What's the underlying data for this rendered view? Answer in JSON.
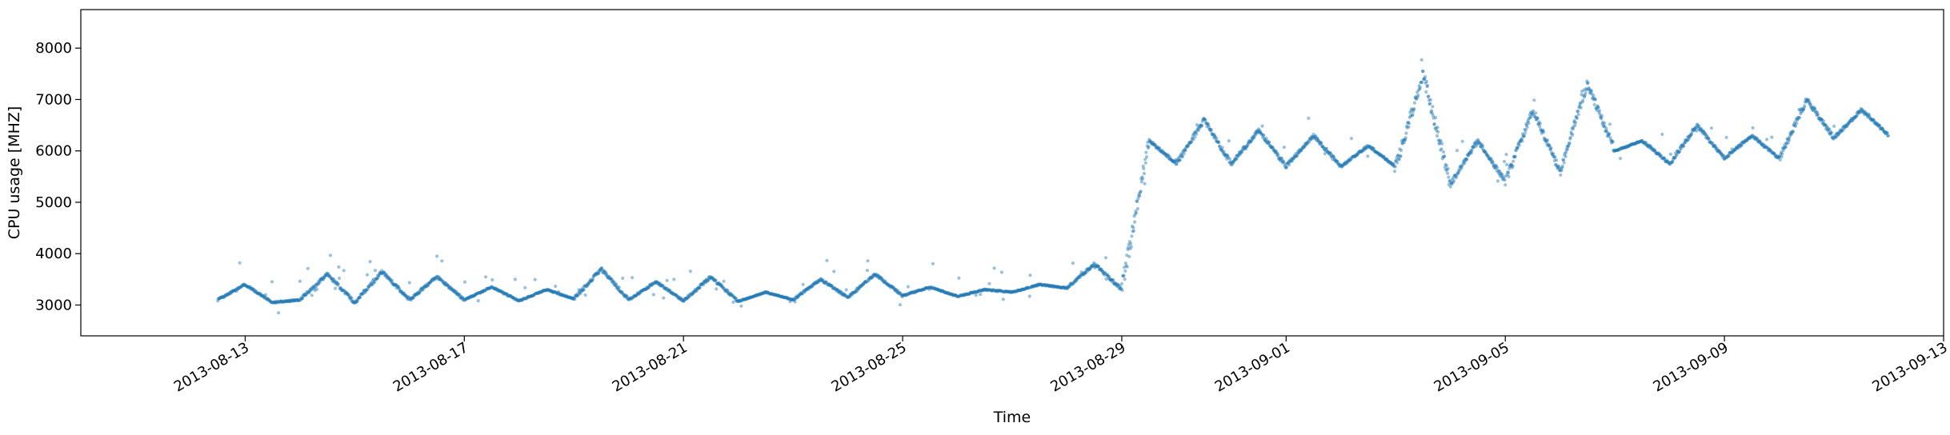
{
  "chart_data": {
    "type": "scatter",
    "title": "",
    "xlabel": "Time",
    "ylabel": "CPU usage [MHZ]",
    "color": "#1f77b4",
    "point_alpha": 0.45,
    "x_axis_type": "date",
    "xlim": [
      "2013-08-10",
      "2013-09-13"
    ],
    "ylim": [
      2400,
      8750
    ],
    "grid": false,
    "legend": "none",
    "y_ticks": [
      {
        "value": 3000,
        "label": "3000"
      },
      {
        "value": 4000,
        "label": "4000"
      },
      {
        "value": 5000,
        "label": "5000"
      },
      {
        "value": 6000,
        "label": "6000"
      },
      {
        "value": 7000,
        "label": "7000"
      },
      {
        "value": 8000,
        "label": "8000"
      }
    ],
    "x_ticks": [
      {
        "value": "2013-08-13",
        "label": "2013-08-13"
      },
      {
        "value": "2013-08-17",
        "label": "2013-08-17"
      },
      {
        "value": "2013-08-21",
        "label": "2013-08-21"
      },
      {
        "value": "2013-08-25",
        "label": "2013-08-25"
      },
      {
        "value": "2013-08-29",
        "label": "2013-08-29"
      },
      {
        "value": "2013-09-01",
        "label": "2013-09-01"
      },
      {
        "value": "2013-09-05",
        "label": "2013-09-05"
      },
      {
        "value": "2013-09-09",
        "label": "2013-09-09"
      },
      {
        "value": "2013-09-13",
        "label": "2013-09-13"
      }
    ],
    "series": [
      {
        "x": [
          "2013-08-12 12:00",
          "2013-08-13 00:00",
          "2013-08-13 12:00",
          "2013-08-14 00:00",
          "2013-08-14 12:00",
          "2013-08-15 00:00",
          "2013-08-15 12:00",
          "2013-08-16 00:00",
          "2013-08-16 12:00",
          "2013-08-17 00:00",
          "2013-08-17 12:00",
          "2013-08-18 00:00",
          "2013-08-18 12:00",
          "2013-08-19 00:00",
          "2013-08-19 12:00",
          "2013-08-20 00:00",
          "2013-08-20 12:00",
          "2013-08-21 00:00",
          "2013-08-21 12:00",
          "2013-08-22 00:00",
          "2013-08-22 12:00",
          "2013-08-23 00:00",
          "2013-08-23 12:00",
          "2013-08-24 00:00",
          "2013-08-24 12:00",
          "2013-08-25 00:00",
          "2013-08-25 12:00",
          "2013-08-26 00:00",
          "2013-08-26 12:00",
          "2013-08-27 00:00",
          "2013-08-27 12:00",
          "2013-08-28 00:00",
          "2013-08-28 12:00",
          "2013-08-29 00:00",
          "2013-08-29 12:00",
          "2013-08-30 00:00",
          "2013-08-30 12:00",
          "2013-08-31 00:00",
          "2013-08-31 12:00",
          "2013-09-01 00:00",
          "2013-09-01 12:00",
          "2013-09-02 00:00",
          "2013-09-02 12:00",
          "2013-09-03 00:00",
          "2013-09-03 12:00",
          "2013-09-04 00:00",
          "2013-09-04 12:00",
          "2013-09-05 00:00",
          "2013-09-05 12:00",
          "2013-09-06 00:00",
          "2013-09-06 12:00",
          "2013-09-07 00:00",
          "2013-09-07 12:00",
          "2013-09-08 00:00",
          "2013-09-08 12:00",
          "2013-09-09 00:00",
          "2013-09-09 12:00",
          "2013-09-10 00:00",
          "2013-09-10 12:00",
          "2013-09-11 00:00",
          "2013-09-11 12:00",
          "2013-09-12 00:00"
        ],
        "y": [
          3100,
          3400,
          3050,
          3100,
          3600,
          3050,
          3650,
          3100,
          3550,
          3100,
          3350,
          3080,
          3300,
          3120,
          3700,
          3100,
          3450,
          3080,
          3550,
          3070,
          3250,
          3100,
          3500,
          3150,
          3600,
          3180,
          3350,
          3170,
          3300,
          3250,
          3400,
          3330,
          3800,
          3300,
          6200,
          5750,
          6600,
          5750,
          6400,
          5700,
          6300,
          5700,
          6100,
          5700,
          7500,
          5350,
          6200,
          5400,
          6800,
          5600,
          7300,
          6000,
          6200,
          5750,
          6500,
          5850,
          6300,
          5850,
          7000,
          6250,
          6800,
          6300
        ]
      }
    ]
  }
}
